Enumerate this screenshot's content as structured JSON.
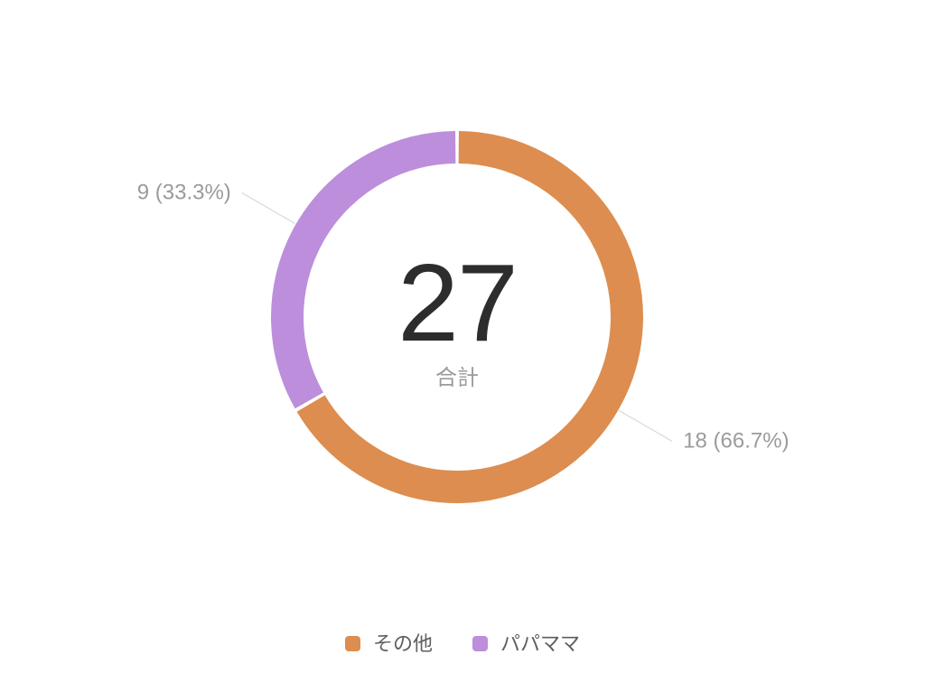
{
  "page": {
    "background": "#ffffff"
  },
  "chart_data": {
    "type": "pie",
    "variant": "donut",
    "title": "",
    "total": 27,
    "center": {
      "value": "27",
      "label": "合計"
    },
    "series": [
      {
        "name": "その他",
        "value": 18,
        "percent": 66.7,
        "callout": "18 (66.7%)",
        "color": "#DD8D4F"
      },
      {
        "name": "パパママ",
        "value": 9,
        "percent": 33.3,
        "callout": "9 (33.3%)",
        "color": "#BC8EDB"
      }
    ],
    "start_angle_deg": 0,
    "direction": "clockwise",
    "legend_position": "bottom",
    "colors": {
      "leader_line": "#DEDEDE",
      "callout_text": "#9B9B9B",
      "center_value_text": "#2D2D2D",
      "center_label_text": "#9B9B9B",
      "legend_text": "#5E5E5E"
    }
  }
}
